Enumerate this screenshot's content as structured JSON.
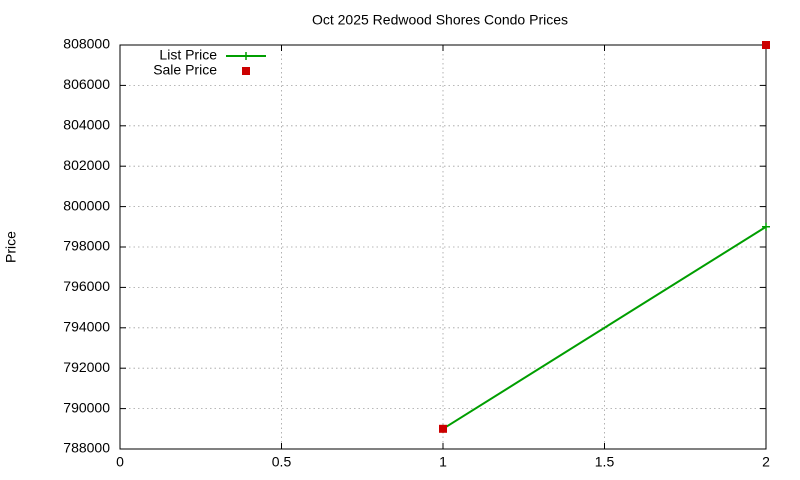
{
  "chart_data": {
    "type": "line",
    "title": "Oct 2025 Redwood Shores Condo Prices",
    "y_label": "Price",
    "x": [
      1,
      2
    ],
    "series": [
      {
        "name": "List Price",
        "color": "#009e00",
        "mode": "lines+markers",
        "values": [
          789000,
          799000
        ]
      },
      {
        "name": "Sale Price",
        "color": "#cc0000",
        "mode": "markers",
        "values": [
          789000,
          808000
        ]
      }
    ],
    "xlim": [
      0,
      2
    ],
    "xticks": [
      0,
      0.5,
      1,
      1.5,
      2
    ],
    "ylim": [
      788000,
      808000
    ],
    "yticks": [
      788000,
      790000,
      792000,
      794000,
      796000,
      798000,
      800000,
      802000,
      804000,
      806000,
      808000
    ],
    "grid": true,
    "legend": "upper left"
  }
}
